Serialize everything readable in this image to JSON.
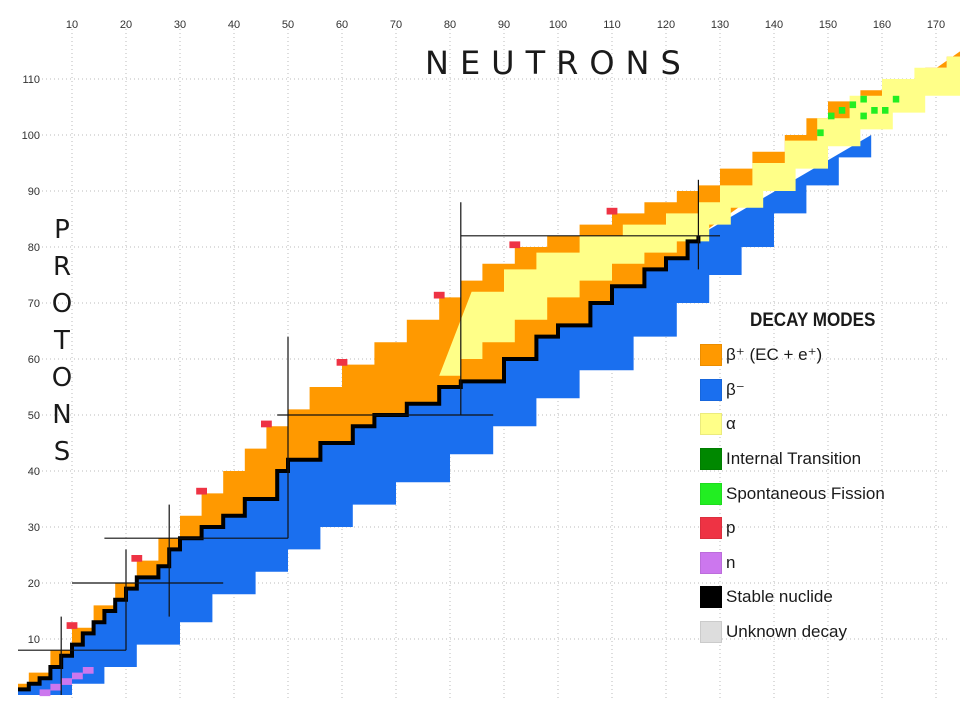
{
  "chart_data": {
    "type": "heatmap",
    "title": "",
    "xlabel": "NEUTRONS",
    "ylabel": "PROTONS",
    "xlim": [
      0,
      176
    ],
    "ylim": [
      0,
      116
    ],
    "x_ticks": [
      "10",
      "20",
      "30",
      "40",
      "50",
      "60",
      "70",
      "80",
      "90",
      "100",
      "110",
      "120",
      "130",
      "140",
      "150",
      "160",
      "170"
    ],
    "y_ticks": [
      "10",
      "20",
      "30",
      "40",
      "50",
      "60",
      "70",
      "80",
      "90",
      "100",
      "110"
    ],
    "grid": true,
    "legend_placement": "right",
    "legend": {
      "title": "DECAY MODES",
      "items": [
        {
          "key": "beta_plus",
          "label": "β⁺ (EC + e⁺)",
          "color": "#ff9900"
        },
        {
          "key": "beta_minus",
          "label": "β⁻",
          "color": "#1a6fef"
        },
        {
          "key": "alpha",
          "label": "α",
          "color": "#ffff88"
        },
        {
          "key": "it",
          "label": "Internal Transition",
          "color": "#008800"
        },
        {
          "key": "sf",
          "label": "Spontaneous Fission",
          "color": "#22ee22"
        },
        {
          "key": "p",
          "label": "p",
          "color": "#ee3344"
        },
        {
          "key": "n",
          "label": "n",
          "color": "#cc77ee"
        },
        {
          "key": "stable",
          "label": "Stable nuclide",
          "color": "#000000"
        },
        {
          "key": "unknown",
          "label": "Unknown decay",
          "color": "#dddddd"
        }
      ]
    },
    "magic_numbers": [
      2,
      8,
      20,
      28,
      50,
      82,
      126
    ],
    "regions": {
      "stable_line": [
        [
          0,
          1
        ],
        [
          1,
          1
        ],
        [
          2,
          2
        ],
        [
          4,
          3
        ],
        [
          6,
          5
        ],
        [
          8,
          7
        ],
        [
          10,
          9
        ],
        [
          12,
          11
        ],
        [
          14,
          13
        ],
        [
          16,
          15
        ],
        [
          18,
          17
        ],
        [
          20,
          19
        ],
        [
          22,
          21
        ],
        [
          26,
          23
        ],
        [
          28,
          26
        ],
        [
          30,
          28
        ],
        [
          34,
          30
        ],
        [
          38,
          32
        ],
        [
          42,
          35
        ],
        [
          48,
          40
        ],
        [
          50,
          42
        ],
        [
          56,
          45
        ],
        [
          62,
          48
        ],
        [
          66,
          50
        ],
        [
          72,
          52
        ],
        [
          78,
          55
        ],
        [
          82,
          56
        ],
        [
          90,
          60
        ],
        [
          96,
          64
        ],
        [
          100,
          66
        ],
        [
          106,
          70
        ],
        [
          110,
          73
        ],
        [
          116,
          76
        ],
        [
          120,
          78
        ],
        [
          124,
          81
        ],
        [
          126,
          82
        ]
      ],
      "neutron_drip": [
        [
          0,
          0
        ],
        [
          4,
          0
        ],
        [
          10,
          2
        ],
        [
          16,
          5
        ],
        [
          22,
          9
        ],
        [
          30,
          13
        ],
        [
          36,
          18
        ],
        [
          44,
          22
        ],
        [
          50,
          26
        ],
        [
          56,
          30
        ],
        [
          62,
          34
        ],
        [
          70,
          38
        ],
        [
          80,
          43
        ],
        [
          88,
          48
        ],
        [
          96,
          53
        ],
        [
          104,
          58
        ],
        [
          114,
          64
        ],
        [
          122,
          70
        ],
        [
          128,
          75
        ],
        [
          134,
          80
        ],
        [
          140,
          86
        ],
        [
          146,
          91
        ],
        [
          152,
          96
        ],
        [
          158,
          100
        ]
      ],
      "proton_drip": [
        [
          0,
          2
        ],
        [
          2,
          4
        ],
        [
          6,
          8
        ],
        [
          10,
          12
        ],
        [
          14,
          16
        ],
        [
          18,
          20
        ],
        [
          22,
          24
        ],
        [
          26,
          28
        ],
        [
          30,
          32
        ],
        [
          34,
          36
        ],
        [
          38,
          40
        ],
        [
          42,
          44
        ],
        [
          46,
          48
        ],
        [
          50,
          51
        ],
        [
          54,
          55
        ],
        [
          60,
          59
        ],
        [
          66,
          63
        ],
        [
          72,
          67
        ],
        [
          78,
          71
        ],
        [
          82,
          74
        ],
        [
          86,
          77
        ],
        [
          92,
          80
        ],
        [
          98,
          82
        ],
        [
          104,
          84
        ],
        [
          110,
          86
        ],
        [
          116,
          88
        ],
        [
          122,
          90
        ],
        [
          126,
          91
        ],
        [
          130,
          94
        ],
        [
          136,
          97
        ],
        [
          142,
          100
        ],
        [
          146,
          103
        ],
        [
          150,
          106
        ],
        [
          156,
          108
        ],
        [
          162,
          110
        ],
        [
          168,
          112
        ],
        [
          172,
          114
        ],
        [
          176,
          116
        ]
      ],
      "alpha_lower": [
        [
          78,
          57
        ],
        [
          82,
          60
        ],
        [
          86,
          63
        ],
        [
          92,
          67
        ],
        [
          98,
          71
        ],
        [
          104,
          74
        ],
        [
          110,
          77
        ],
        [
          116,
          79
        ],
        [
          122,
          81
        ],
        [
          128,
          84
        ],
        [
          132,
          87
        ],
        [
          138,
          90
        ],
        [
          144,
          94
        ],
        [
          150,
          98
        ],
        [
          156,
          101
        ],
        [
          162,
          104
        ],
        [
          168,
          107
        ],
        [
          176,
          110
        ]
      ],
      "alpha_upper": [
        [
          84,
          72
        ],
        [
          90,
          76
        ],
        [
          96,
          79
        ],
        [
          104,
          82
        ],
        [
          112,
          84
        ],
        [
          120,
          86
        ],
        [
          126,
          88
        ],
        [
          130,
          91
        ],
        [
          136,
          95
        ],
        [
          142,
          99
        ],
        [
          148,
          103
        ],
        [
          154,
          107
        ],
        [
          160,
          110
        ],
        [
          166,
          112
        ],
        [
          172,
          114
        ],
        [
          176,
          116
        ]
      ]
    }
  }
}
